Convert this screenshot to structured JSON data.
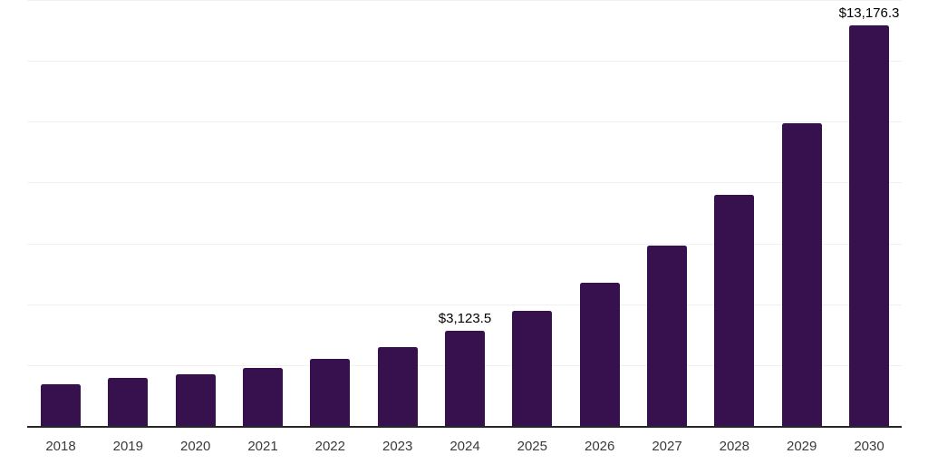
{
  "chart_data": {
    "type": "bar",
    "title": "",
    "xlabel": "",
    "ylabel": "",
    "categories": [
      "2018",
      "2019",
      "2020",
      "2021",
      "2022",
      "2023",
      "2024",
      "2025",
      "2026",
      "2027",
      "2028",
      "2029",
      "2030"
    ],
    "values": [
      1360,
      1590,
      1690,
      1915,
      2205,
      2600,
      3123.5,
      3775,
      4700,
      5930,
      7590,
      9960,
      13176.3
    ],
    "data_labels": [
      "",
      "",
      "",
      "",
      "",
      "",
      "$3,123.5",
      "",
      "",
      "",
      "",
      "",
      "$13,176.3"
    ],
    "ylim": [
      0,
      14000
    ],
    "grid_step": 2000,
    "grid": true,
    "legend": false,
    "colors": {
      "bar": "#36114E",
      "gridline": "#F0F0F0",
      "axis_line": "#262626",
      "tick_label": "#3A3A3A",
      "data_label": "#000000",
      "background": "#FFFFFF"
    }
  }
}
